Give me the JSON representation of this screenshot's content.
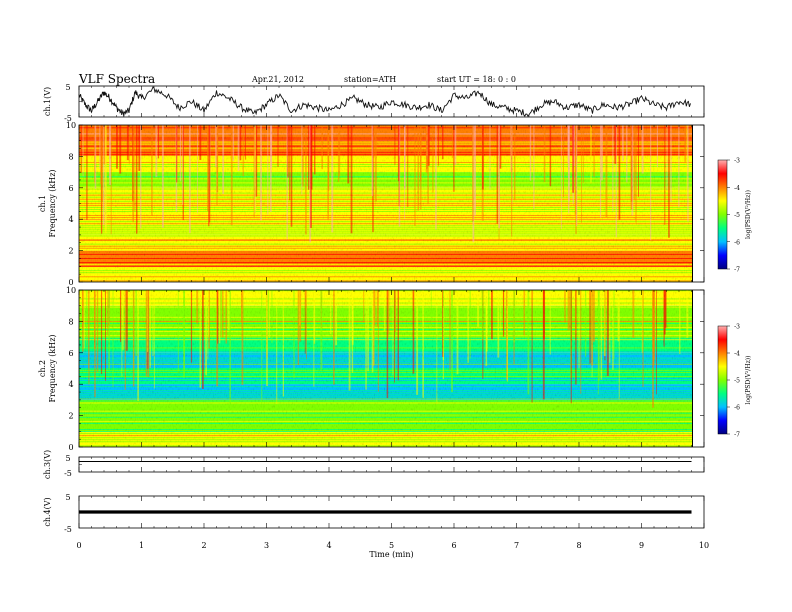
{
  "header": {
    "title": "VLF Spectra",
    "date": "Apr.21, 2012",
    "station": "station=ATH",
    "start": "start UT =  18: 0 : 0"
  },
  "colors": {
    "scale": [
      "#000080",
      "#0000ff",
      "#00c0ff",
      "#00ff80",
      "#80ff00",
      "#ffff00",
      "#ff8000",
      "#ff0000",
      "#ffb0b0"
    ],
    "axis": "#000000",
    "trace": "#000000"
  },
  "chart_data": [
    {
      "type": "line",
      "panel": "ch1",
      "ylabel": "ch.1(V)",
      "yticks": [
        "5",
        "-5"
      ],
      "ylim": [
        -5,
        5
      ],
      "xlim": [
        0,
        10
      ],
      "series": [
        {
          "x": [
            0,
            0.1,
            0.2,
            0.3,
            0.4,
            0.5,
            0.6,
            0.7,
            0.8,
            0.9,
            1.0,
            1.2,
            1.4,
            1.6,
            1.8,
            2.0,
            2.2,
            2.4,
            2.6,
            2.8,
            3.0,
            3.2,
            3.4,
            3.6,
            3.8,
            4.0,
            4.2,
            4.4,
            4.6,
            4.8,
            5.0,
            5.2,
            5.4,
            5.6,
            5.8,
            6.0,
            6.2,
            6.4,
            6.6,
            6.8,
            7.0,
            7.2,
            7.4,
            7.6,
            7.8,
            8.0,
            8.2,
            8.4,
            8.6,
            8.8,
            9.0,
            9.2,
            9.4,
            9.6,
            9.8
          ],
          "values": [
            2,
            -1,
            -3,
            0,
            3,
            1,
            -2,
            -4,
            -3,
            3,
            1,
            4,
            2,
            -2,
            0,
            -3,
            3,
            1,
            -2,
            -4,
            -1,
            2,
            -3,
            -1,
            -2,
            -3,
            -1,
            1,
            -1,
            -2,
            0,
            -1,
            -2,
            -1,
            -3,
            2,
            1,
            3,
            -1,
            -2,
            -3,
            -4,
            -1,
            0,
            -2,
            -1,
            -3,
            -1,
            -2,
            -1,
            1,
            -1,
            -2,
            0,
            -1
          ]
        }
      ]
    },
    {
      "type": "heatmap",
      "panel": "ch1-spectrogram",
      "xlabel": "",
      "ylabel": "Frequency (kHz)",
      "channel_label": "ch.1",
      "ylim": [
        0,
        10
      ],
      "yticks": [
        "0",
        "2",
        "4",
        "6",
        "8",
        "10"
      ],
      "xlim": [
        0,
        9.8
      ],
      "frequency_kHz": [
        0.5,
        1.5,
        2.5,
        3.5,
        4.5,
        5.5,
        6.5,
        7.5,
        8.5,
        9.5
      ],
      "log_psd": [
        -4.6,
        -3.9,
        -4.3,
        -4.6,
        -4.5,
        -4.7,
        -4.9,
        -4.6,
        -4.1,
        -3.8
      ],
      "colorbar": {
        "label": "log(PSD(V²/Hz))",
        "range": [
          -7,
          -3
        ],
        "ticks": [
          "-3",
          "-4",
          "-5",
          "-6",
          "-7"
        ]
      }
    },
    {
      "type": "heatmap",
      "panel": "ch2-spectrogram",
      "xlabel": "",
      "ylabel": "Frequency (kHz)",
      "channel_label": "ch.2",
      "ylim": [
        0,
        10
      ],
      "yticks": [
        "0",
        "2",
        "4",
        "6",
        "8",
        "10"
      ],
      "xlim": [
        0,
        9.8
      ],
      "frequency_kHz": [
        0.5,
        1.5,
        2.5,
        3.5,
        4.5,
        5.5,
        6.5,
        7.5,
        8.5,
        9.5
      ],
      "log_psd": [
        -4.7,
        -5.0,
        -5.0,
        -5.8,
        -5.6,
        -5.8,
        -5.4,
        -5.0,
        -4.8,
        -4.6
      ],
      "colorbar": {
        "label": "log(PSD(V²/Hz))",
        "range": [
          -7,
          -3
        ],
        "ticks": [
          "-3",
          "-4",
          "-5",
          "-6",
          "-7"
        ]
      }
    },
    {
      "type": "line",
      "panel": "ch3",
      "ylabel": "ch.3(V)",
      "yticks": [
        "5",
        "-5"
      ],
      "ylim": [
        -5,
        5
      ],
      "xlim": [
        0,
        10
      ],
      "series": [
        {
          "x": [
            0,
            9.8
          ],
          "values": [
            2,
            2
          ]
        }
      ]
    },
    {
      "type": "line",
      "panel": "ch4",
      "ylabel": "ch.4(V)",
      "yticks": [
        "5",
        "-5"
      ],
      "ylim": [
        -5,
        5
      ],
      "xlim": [
        0,
        10
      ],
      "xlabel": "Time (min)",
      "xticks": [
        "0",
        "1",
        "2",
        "3",
        "4",
        "5",
        "6",
        "7",
        "8",
        "9",
        "10"
      ],
      "series": [
        {
          "x": [
            0,
            9.8
          ],
          "values": [
            0,
            0
          ]
        }
      ]
    }
  ]
}
